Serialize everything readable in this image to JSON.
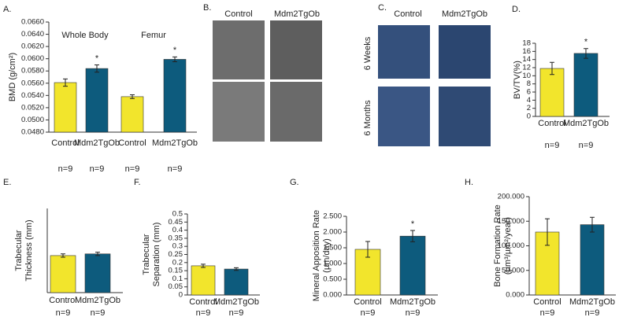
{
  "chart_data": [
    {
      "type": "bar",
      "panel": "A.",
      "ylabel": [
        "BMD (g/cm²)"
      ],
      "groups": [
        "Whole Body",
        "Femur"
      ],
      "categories": [
        "Control",
        "Mdm2TgOb",
        "Control",
        "Mdm2TgOb"
      ],
      "values": [
        0.0561,
        0.0584,
        0.0538,
        0.0599
      ],
      "errors": [
        0.0006,
        0.0006,
        0.0003,
        0.0004
      ],
      "colors": [
        "#f2e52c",
        "#0d5b7d",
        "#f2e52c",
        "#0d5b7d"
      ],
      "significance": [
        null,
        "*",
        null,
        "*"
      ],
      "n_labels": [
        "n=9",
        "n=9",
        "n=9",
        "n=9"
      ],
      "ylim": [
        0.048,
        0.066
      ],
      "yticks": [
        {
          "value": 0.048,
          "label": "0.0480"
        },
        {
          "value": 0.05,
          "label": "0.0500"
        },
        {
          "value": 0.052,
          "label": "0.0520"
        },
        {
          "value": 0.054,
          "label": "0.0540"
        },
        {
          "value": 0.056,
          "label": "0.0560"
        },
        {
          "value": 0.058,
          "label": "0.0580"
        },
        {
          "value": 0.06,
          "label": "0.0600"
        },
        {
          "value": 0.062,
          "label": "0.0620"
        },
        {
          "value": 0.064,
          "label": "0.0640"
        },
        {
          "value": 0.066,
          "label": "0.0660"
        }
      ]
    },
    {
      "type": "bar",
      "panel": "D.",
      "ylabel": [
        "BV/TV(%)"
      ],
      "categories": [
        "Control",
        "Mdm2TgOb"
      ],
      "values": [
        11.8,
        15.5
      ],
      "errors": [
        1.5,
        1.2
      ],
      "colors": [
        "#f2e52c",
        "#0d5b7d"
      ],
      "significance": [
        null,
        "*"
      ],
      "n_labels": [
        "n=9",
        "n=9"
      ],
      "ylim": [
        0,
        18
      ],
      "yticks": [
        0,
        2,
        4,
        6,
        8,
        10,
        12,
        14,
        16,
        18
      ]
    },
    {
      "type": "bar",
      "panel": "E.",
      "ylabel": [
        "Trabecular",
        "Thickness (mm)"
      ],
      "categories": [
        "Control",
        "Mdm2TgOb"
      ],
      "values": [
        0.044,
        0.046
      ],
      "errors": [
        0.002,
        0.002
      ],
      "colors": [
        "#f2e52c",
        "#0d5b7d"
      ],
      "significance": [
        null,
        null
      ],
      "n_labels": [
        "n=9",
        "n=9"
      ],
      "ylim": [
        0,
        0.1
      ]
    },
    {
      "type": "bar",
      "panel": "F.",
      "ylabel": [
        "Trabecular",
        "Separation (mm)"
      ],
      "categories": [
        "Control",
        "Mdm2TgOb"
      ],
      "values": [
        0.18,
        0.16
      ],
      "errors": [
        0.01,
        0.008
      ],
      "colors": [
        "#f2e52c",
        "#0d5b7d"
      ],
      "significance": [
        null,
        null
      ],
      "n_labels": [
        "n=9",
        "n=9"
      ],
      "ylim": [
        0,
        0.5
      ],
      "yticks": [
        0,
        0.05,
        0.1,
        0.15,
        0.2,
        0.25,
        0.3,
        0.35,
        0.4,
        0.45,
        0.5
      ]
    },
    {
      "type": "bar",
      "panel": "G.",
      "ylabel": [
        "Mineral Apposition Rate",
        "(µm/day)"
      ],
      "categories": [
        "Control",
        "Mdm2TgOb"
      ],
      "values": [
        1.45,
        1.87
      ],
      "errors": [
        0.25,
        0.18
      ],
      "colors": [
        "#f2e52c",
        "#0d5b7d"
      ],
      "significance": [
        null,
        "*"
      ],
      "n_labels": [
        "n=9",
        "n=9"
      ],
      "ylim": [
        0,
        2.5
      ],
      "yticks": [
        {
          "value": 0,
          "label": "0.000"
        },
        {
          "value": 0.5,
          "label": "0.500"
        },
        {
          "value": 1,
          "label": "1.000"
        },
        {
          "value": 1.5,
          "label": "1.500"
        },
        {
          "value": 2,
          "label": "2.000"
        },
        {
          "value": 2.5,
          "label": "2.500"
        }
      ]
    },
    {
      "type": "bar",
      "panel": "H.",
      "ylabel": [
        "Bone Formation Rate",
        "(µm³/µm²/year)"
      ],
      "categories": [
        "Control",
        "Mdm2TgOb"
      ],
      "values": [
        128,
        143
      ],
      "errors": [
        27,
        15
      ],
      "colors": [
        "#f2e52c",
        "#0d5b7d"
      ],
      "significance": [
        null,
        null
      ],
      "n_labels": [
        "n=9",
        "n=9"
      ],
      "ylim": [
        0,
        200
      ],
      "yticks": [
        {
          "value": 0,
          "label": "0.000"
        },
        {
          "value": 50,
          "label": "50.000"
        },
        {
          "value": 100,
          "label": "100.000"
        },
        {
          "value": 150,
          "label": "150.000"
        },
        {
          "value": 200,
          "label": "200.000"
        }
      ]
    }
  ],
  "images": [
    {
      "panel": "B.",
      "columns": [
        "Control",
        "Mdm2TgOb"
      ]
    },
    {
      "panel": "C.",
      "columns": [
        "Control",
        "Mdm2TgOb"
      ],
      "rows": [
        "6 Weeks",
        "6 Months"
      ]
    }
  ]
}
